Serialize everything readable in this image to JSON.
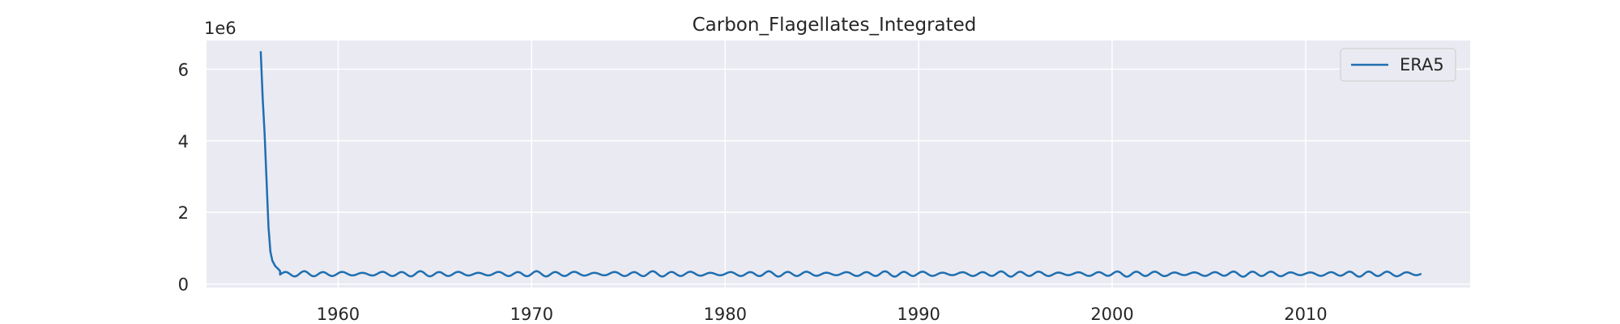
{
  "chart_data": {
    "type": "line",
    "title": "Carbon_Flagellates_Integrated",
    "xlabel": "",
    "ylabel": "",
    "y_offset_label": "1e6",
    "xlim": [
      1953.2,
      2018.5
    ],
    "ylim": [
      -100000,
      6800000
    ],
    "xticks": [
      1960,
      1970,
      1980,
      1990,
      2000,
      2010
    ],
    "yticks": [
      0,
      2,
      4,
      6
    ],
    "ytick_multiplier": 1000000,
    "grid": true,
    "legend_position": "top-right",
    "colors": {
      "plot_background": "#eaeaf2",
      "grid": "#ffffff",
      "series": "#1f6fb0",
      "text": "#262626"
    },
    "series": [
      {
        "name": "ERA5",
        "color": "#1f6fb0",
        "spike": [
          [
            1956.0,
            6500000
          ],
          [
            1956.1,
            5200000
          ],
          [
            1956.2,
            4200000
          ],
          [
            1956.3,
            2900000
          ],
          [
            1956.4,
            1600000
          ],
          [
            1956.5,
            900000
          ],
          [
            1956.6,
            650000
          ],
          [
            1956.75,
            500000
          ],
          [
            1956.9,
            420000
          ],
          [
            1957.0,
            360000
          ]
        ],
        "seasonal": {
          "start": 1957.0,
          "end": 2016.0,
          "step": 0.0833,
          "baseline": 280000,
          "amplitude": 55000,
          "period": 1.0
        }
      }
    ]
  }
}
